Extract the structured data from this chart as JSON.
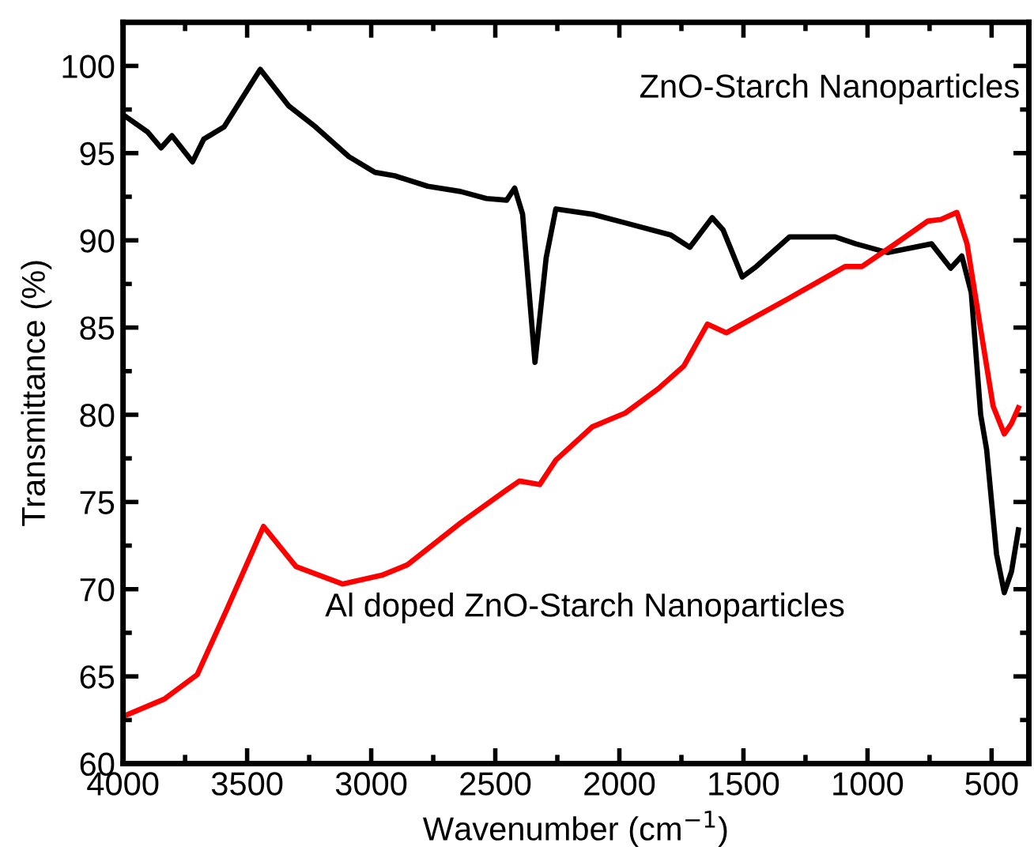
{
  "chart_data": {
    "type": "line",
    "xlabel": "Wavenumber (cm$^{−1}$)",
    "ylabel": "Transmittance (%)",
    "xlim": [
      4000,
      350
    ],
    "ylim": [
      60,
      102.5
    ],
    "xticks": [
      4000,
      {
        "value": 3750,
        "label": null
      },
      3500,
      {
        "value": 3250,
        "label": null
      },
      3000,
      {
        "value": 2750,
        "label": null
      },
      2500,
      {
        "value": 2250,
        "label": null
      },
      2000,
      {
        "value": 1750,
        "label": null
      },
      1500,
      {
        "value": 1250,
        "label": null
      },
      1000,
      {
        "value": 750,
        "label": null
      },
      500
    ],
    "yticks": [
      60,
      {
        "value": 62.5,
        "label": null
      },
      65,
      {
        "value": 67.5,
        "label": null
      },
      70,
      {
        "value": 72.5,
        "label": null
      },
      75,
      {
        "value": 77.5,
        "label": null
      },
      80,
      {
        "value": 82.5,
        "label": null
      },
      85,
      {
        "value": 87.5,
        "label": null
      },
      90,
      {
        "value": 92.5,
        "label": null
      },
      95,
      {
        "value": 97.5,
        "label": null
      },
      100
    ],
    "annotations": [
      "ZnO-Starch Nanoparticles",
      "Al doped ZnO-Starch Nanoparticles"
    ],
    "series": [
      {
        "color": "#000000",
        "x": [
          4000,
          3900,
          3847,
          3803,
          3720,
          3675,
          3593,
          3447,
          3332,
          3224,
          3090,
          2985,
          2905,
          2772,
          2640,
          2536,
          2454,
          2422,
          2390,
          2340,
          2295,
          2256,
          2110,
          1976,
          1792,
          1716,
          1626,
          1582,
          1505,
          1448,
          1314,
          1130,
          1047,
          920,
          742,
          665,
          620,
          582,
          544,
          520,
          480,
          449,
          420,
          392
        ],
        "values": [
          97.2,
          96.2,
          95.3,
          96.0,
          94.5,
          95.8,
          96.5,
          99.8,
          97.7,
          96.5,
          94.8,
          93.9,
          93.7,
          93.1,
          92.8,
          92.4,
          92.3,
          93.0,
          91.5,
          83.0,
          89.0,
          91.8,
          91.5,
          91.0,
          90.3,
          89.6,
          91.3,
          90.6,
          87.9,
          88.5,
          90.2,
          90.2,
          89.8,
          89.3,
          89.8,
          88.4,
          89.1,
          87.0,
          80.0,
          78.0,
          72.0,
          69.8,
          71.0,
          73.4
        ]
      },
      {
        "color": "#ff0000",
        "x": [
          4000,
          3834,
          3701,
          3580,
          3434,
          3303,
          3116,
          2957,
          2854,
          2640,
          2454,
          2403,
          2321,
          2256,
          2110,
          1976,
          1843,
          1740,
          1645,
          1569,
          1314,
          1091,
          1022,
          888,
          758,
          704,
          640,
          599,
          544,
          494,
          449,
          420,
          392
        ],
        "values": [
          62.7,
          63.7,
          65.1,
          68.9,
          73.6,
          71.3,
          70.3,
          70.8,
          71.4,
          73.8,
          75.7,
          76.2,
          76.0,
          77.4,
          79.3,
          80.1,
          81.5,
          82.8,
          85.2,
          84.7,
          86.7,
          88.5,
          88.5,
          89.8,
          91.1,
          91.2,
          91.6,
          89.8,
          84.9,
          80.5,
          78.9,
          79.5,
          80.4
        ]
      }
    ]
  }
}
